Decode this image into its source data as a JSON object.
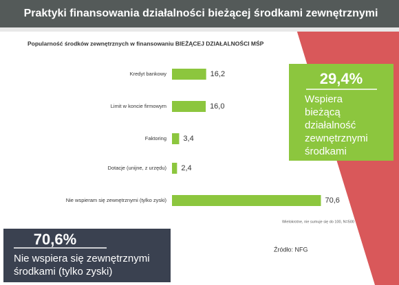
{
  "header": {
    "title": "Praktyki finansowania działalności bieżącej środkami zewnętrznymi"
  },
  "chart_data": {
    "type": "hbar",
    "title": "Popularność środków zewnętrznych w finansowaniu BIEŻĄCEJ DZIAŁALNOŚCI MŚP",
    "categories": [
      "Kredyt bankowy",
      "Limit w koncie firmowym",
      "Faktoring",
      "Dotacje (unijne, z urzędu)",
      "Nie wspieram się zewnętrznymi (tylko zyski)"
    ],
    "values": [
      16.2,
      16.0,
      3.4,
      2.4,
      70.6
    ],
    "value_labels": [
      "16,2",
      "16,0",
      "3,4",
      "2,4",
      "70,6"
    ],
    "color": "#8cc63e",
    "xlim": [
      0,
      75
    ],
    "note": "Wielokrotne, nie sumuje się do 100, N=500"
  },
  "callouts": [
    {
      "value": "29,4%",
      "text": [
        "Wspiera",
        "bieżącą",
        "działalność",
        "zewnętrznymi",
        "środkami"
      ]
    },
    {
      "value": "70,6%",
      "text": [
        "Nie wspiera się zewnętrznymi",
        "środkami (tylko zyski)"
      ]
    }
  ],
  "source": "Źródło: NFG"
}
